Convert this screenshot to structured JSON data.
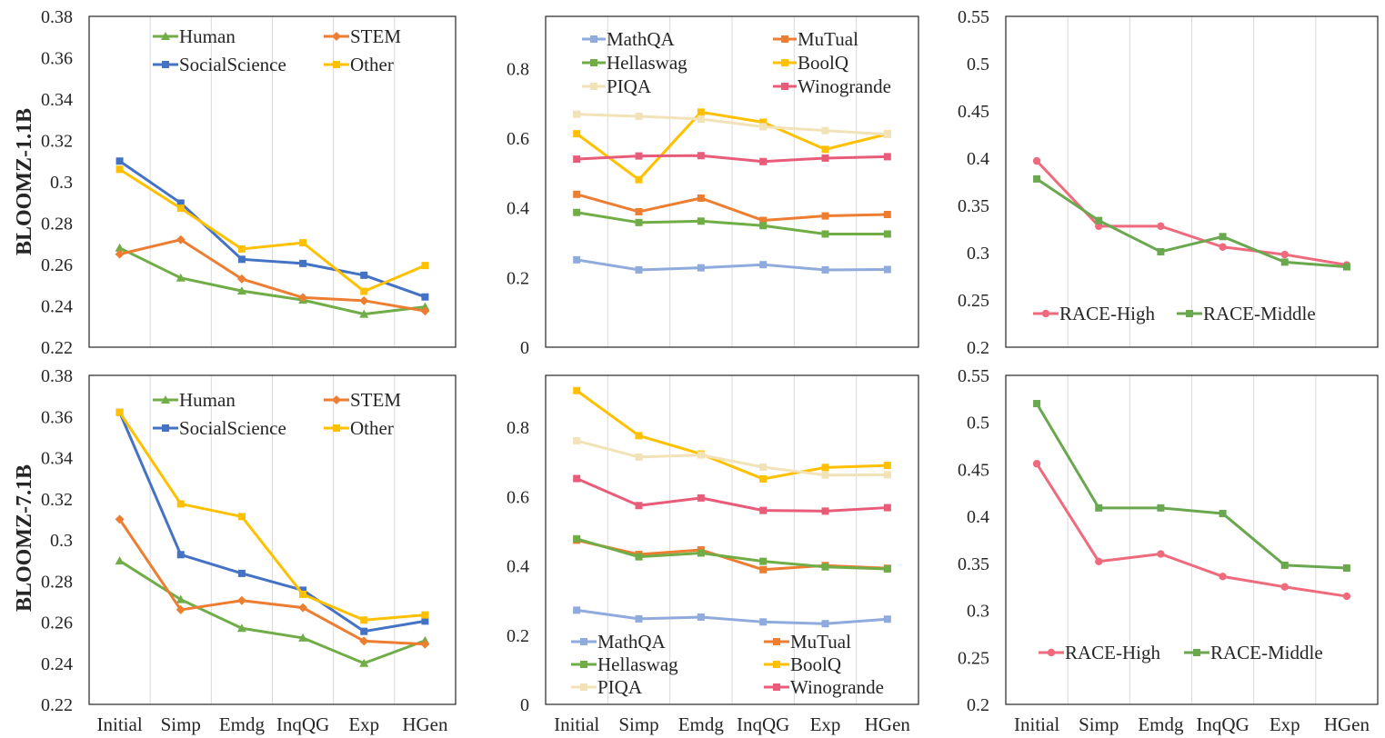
{
  "row_labels": [
    "BLOOMZ-1.1B",
    "BLOOMZ-7.1B"
  ],
  "colors": {
    "Human": "#70ad47",
    "STEM": "#ed7d31",
    "SocialScience": "#4472c4",
    "Other": "#ffc000",
    "MathQA": "#8faadc",
    "MuTual": "#ed7d31",
    "Hellaswag": "#70ad47",
    "BoolQ": "#ffc000",
    "PIQA": "#f2e2b8",
    "Winogrande": "#e85c7a",
    "RACE-High": "#ee6a7c",
    "RACE-Middle": "#6aa84f",
    "axis": "#262626",
    "grid": "#d9d9d9"
  },
  "chart_data": [
    {
      "id": "mmlu-1.1b",
      "type": "line",
      "row_label": "BLOOMZ-1.1B",
      "categories": [
        "Initial",
        "Simp",
        "Emdg",
        "InqQG",
        "Exp",
        "HGen"
      ],
      "ylim": [
        0.22,
        0.38
      ],
      "yticks": [
        "0.22",
        "0.24",
        "0.26",
        "0.28",
        "0.3",
        "0.32",
        "0.34",
        "0.36",
        "0.38"
      ],
      "show_xticks": false,
      "legend_position": "top",
      "series": [
        {
          "name": "Human",
          "marker": "triangle",
          "values": [
            0.268,
            0.2535,
            0.2472,
            0.2428,
            0.236,
            0.2395
          ]
        },
        {
          "name": "STEM",
          "marker": "diamond",
          "values": [
            0.265,
            0.272,
            0.253,
            0.244,
            0.2425,
            0.2375
          ]
        },
        {
          "name": "SocialScience",
          "marker": "square",
          "values": [
            0.31,
            0.2897,
            0.2625,
            0.2605,
            0.2548,
            0.2443
          ]
        },
        {
          "name": "Other",
          "marker": "square",
          "values": [
            0.306,
            0.2872,
            0.2675,
            0.2705,
            0.247,
            0.2595
          ]
        }
      ]
    },
    {
      "id": "bench-1.1b",
      "type": "line",
      "categories": [
        "Initial",
        "Simp",
        "Emdg",
        "InqQG",
        "Exp",
        "HGen"
      ],
      "ylim": [
        0,
        0.95
      ],
      "yticks": [
        "0",
        "0.2",
        "0.4",
        "0.6",
        "0.8"
      ],
      "show_xticks": false,
      "legend_position": "top",
      "series": [
        {
          "name": "MathQA",
          "marker": "square",
          "values": [
            0.251,
            0.222,
            0.228,
            0.237,
            0.222,
            0.223
          ]
        },
        {
          "name": "MuTual",
          "marker": "square",
          "values": [
            0.439,
            0.389,
            0.428,
            0.364,
            0.377,
            0.381
          ]
        },
        {
          "name": "Hellaswag",
          "marker": "square",
          "values": [
            0.387,
            0.358,
            0.362,
            0.349,
            0.325,
            0.325
          ]
        },
        {
          "name": "BoolQ",
          "marker": "square",
          "values": [
            0.613,
            0.481,
            0.675,
            0.646,
            0.568,
            0.612
          ]
        },
        {
          "name": "PIQA",
          "marker": "square",
          "values": [
            0.669,
            0.663,
            0.655,
            0.633,
            0.622,
            0.611
          ]
        },
        {
          "name": "Winogrande",
          "marker": "square",
          "values": [
            0.54,
            0.549,
            0.55,
            0.533,
            0.543,
            0.547
          ]
        }
      ]
    },
    {
      "id": "race-1.1b",
      "type": "line",
      "categories": [
        "Initial",
        "Simp",
        "Emdg",
        "InqQG",
        "Exp",
        "HGen"
      ],
      "ylim": [
        0.2,
        0.55
      ],
      "yticks": [
        "0.2",
        "0.25",
        "0.3",
        "0.35",
        "0.4",
        "0.45",
        "0.5",
        "0.55"
      ],
      "show_xticks": false,
      "legend_position": "lower-middle",
      "series": [
        {
          "name": "RACE-High",
          "marker": "circle",
          "values": [
            0.397,
            0.328,
            0.328,
            0.306,
            0.298,
            0.287
          ]
        },
        {
          "name": "RACE-Middle",
          "marker": "square",
          "values": [
            0.378,
            0.334,
            0.301,
            0.317,
            0.29,
            0.285
          ]
        }
      ]
    },
    {
      "id": "mmlu-7.1b",
      "type": "line",
      "row_label": "BLOOMZ-7.1B",
      "categories": [
        "Initial",
        "Simp",
        "Emdg",
        "InqQG",
        "Exp",
        "HGen"
      ],
      "ylim": [
        0.22,
        0.38
      ],
      "yticks": [
        "0.22",
        "0.24",
        "0.26",
        "0.28",
        "0.3",
        "0.32",
        "0.34",
        "0.36",
        "0.38"
      ],
      "show_xticks": true,
      "legend_position": "top",
      "series": [
        {
          "name": "Human",
          "marker": "triangle",
          "values": [
            0.2898,
            0.271,
            0.257,
            0.2523,
            0.24,
            0.251
          ]
        },
        {
          "name": "STEM",
          "marker": "diamond",
          "values": [
            0.31,
            0.266,
            0.2705,
            0.267,
            0.2508,
            0.2493
          ]
        },
        {
          "name": "SocialScience",
          "marker": "square",
          "values": [
            0.362,
            0.2928,
            0.2837,
            0.2755,
            0.2555,
            0.2605
          ]
        },
        {
          "name": "Other",
          "marker": "square",
          "values": [
            0.362,
            0.3175,
            0.3113,
            0.2735,
            0.261,
            0.2635
          ]
        }
      ]
    },
    {
      "id": "bench-7.1b",
      "type": "line",
      "categories": [
        "Initial",
        "Simp",
        "Emdg",
        "InqQG",
        "Exp",
        "HGen"
      ],
      "ylim": [
        0,
        0.95
      ],
      "yticks": [
        "0",
        "0.2",
        "0.4",
        "0.6",
        "0.8"
      ],
      "show_xticks": true,
      "legend_position": "bottom",
      "series": [
        {
          "name": "MathQA",
          "marker": "square",
          "values": [
            0.272,
            0.247,
            0.252,
            0.238,
            0.233,
            0.246
          ]
        },
        {
          "name": "MuTual",
          "marker": "square",
          "values": [
            0.474,
            0.433,
            0.446,
            0.389,
            0.401,
            0.393
          ]
        },
        {
          "name": "Hellaswag",
          "marker": "square",
          "values": [
            0.478,
            0.426,
            0.437,
            0.413,
            0.397,
            0.391
          ]
        },
        {
          "name": "BoolQ",
          "marker": "square",
          "values": [
            0.906,
            0.776,
            0.723,
            0.651,
            0.684,
            0.69
          ]
        },
        {
          "name": "PIQA",
          "marker": "square",
          "values": [
            0.761,
            0.714,
            0.72,
            0.685,
            0.662,
            0.663
          ]
        },
        {
          "name": "Winogrande",
          "marker": "square",
          "values": [
            0.652,
            0.574,
            0.596,
            0.56,
            0.558,
            0.568
          ]
        }
      ]
    },
    {
      "id": "race-7.1b",
      "type": "line",
      "categories": [
        "Initial",
        "Simp",
        "Emdg",
        "InqQG",
        "Exp",
        "HGen"
      ],
      "ylim": [
        0.2,
        0.55
      ],
      "yticks": [
        "0.2",
        "0.25",
        "0.3",
        "0.35",
        "0.4",
        "0.45",
        "0.5",
        "0.55"
      ],
      "show_xticks": true,
      "legend_position": "lower-middle",
      "series": [
        {
          "name": "RACE-High",
          "marker": "circle",
          "values": [
            0.456,
            0.352,
            0.36,
            0.336,
            0.325,
            0.315
          ]
        },
        {
          "name": "RACE-Middle",
          "marker": "square",
          "values": [
            0.52,
            0.409,
            0.409,
            0.403,
            0.348,
            0.345
          ]
        }
      ]
    }
  ]
}
